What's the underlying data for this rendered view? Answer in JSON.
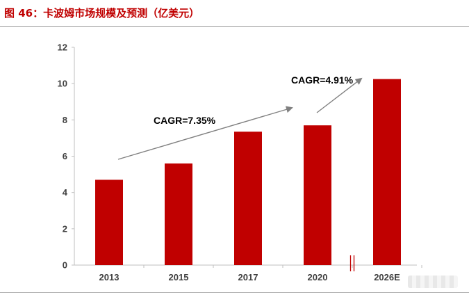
{
  "figure_title": "图 46：卡波姆市场规模及预测（亿美元）",
  "colors": {
    "bar": "#c00000",
    "title": "#c00000",
    "arrow": "#808080",
    "axis": "#bfbfbf",
    "break_mark": "#c00000"
  },
  "chart_data": {
    "type": "bar",
    "title": "",
    "xlabel": "",
    "ylabel": "",
    "categories": [
      "2013",
      "2015",
      "2017",
      "2020",
      "2026E"
    ],
    "values": [
      4.7,
      5.6,
      7.35,
      7.7,
      10.25
    ],
    "ylim": [
      0,
      12
    ],
    "yticks": [
      "0",
      "2",
      "4",
      "6",
      "8",
      "10",
      "12"
    ],
    "grid": false,
    "legend": "none",
    "axis_break_between": [
      "2020",
      "2026E"
    ],
    "annotations": [
      {
        "text": "CAGR=7.35%",
        "from": "2013",
        "to": "2020"
      },
      {
        "text": "CAGR=4.91%",
        "from": "2020",
        "to": "2026E"
      }
    ]
  }
}
